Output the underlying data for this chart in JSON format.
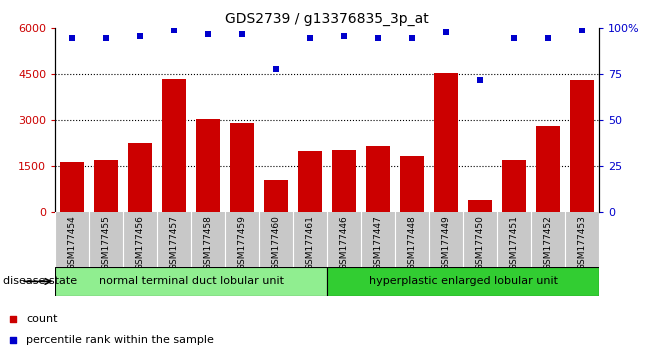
{
  "title": "GDS2739 / g13376835_3p_at",
  "samples": [
    "GSM177454",
    "GSM177455",
    "GSM177456",
    "GSM177457",
    "GSM177458",
    "GSM177459",
    "GSM177460",
    "GSM177461",
    "GSM177446",
    "GSM177447",
    "GSM177448",
    "GSM177449",
    "GSM177450",
    "GSM177451",
    "GSM177452",
    "GSM177453"
  ],
  "counts": [
    1650,
    1720,
    2250,
    4350,
    3050,
    2900,
    1050,
    2000,
    2050,
    2150,
    1850,
    4550,
    400,
    1700,
    2800,
    4300
  ],
  "percentiles": [
    95,
    95,
    96,
    99,
    97,
    97,
    78,
    95,
    96,
    95,
    95,
    98,
    72,
    95,
    95,
    99
  ],
  "ylim_left": [
    0,
    6000
  ],
  "ylim_right": [
    0,
    100
  ],
  "yticks_left": [
    0,
    1500,
    3000,
    4500,
    6000
  ],
  "yticks_right": [
    0,
    25,
    50,
    75,
    100
  ],
  "bar_color": "#cc0000",
  "dot_color": "#0000cc",
  "tick_area_color": "#c8c8c8",
  "group1_label": "normal terminal duct lobular unit",
  "group2_label": "hyperplastic enlarged lobular unit",
  "group1_count": 8,
  "group2_count": 8,
  "group1_color": "#90ee90",
  "group2_color": "#32cd32",
  "disease_state_label": "disease state",
  "legend_count_label": "count",
  "legend_percentile_label": "percentile rank within the sample"
}
